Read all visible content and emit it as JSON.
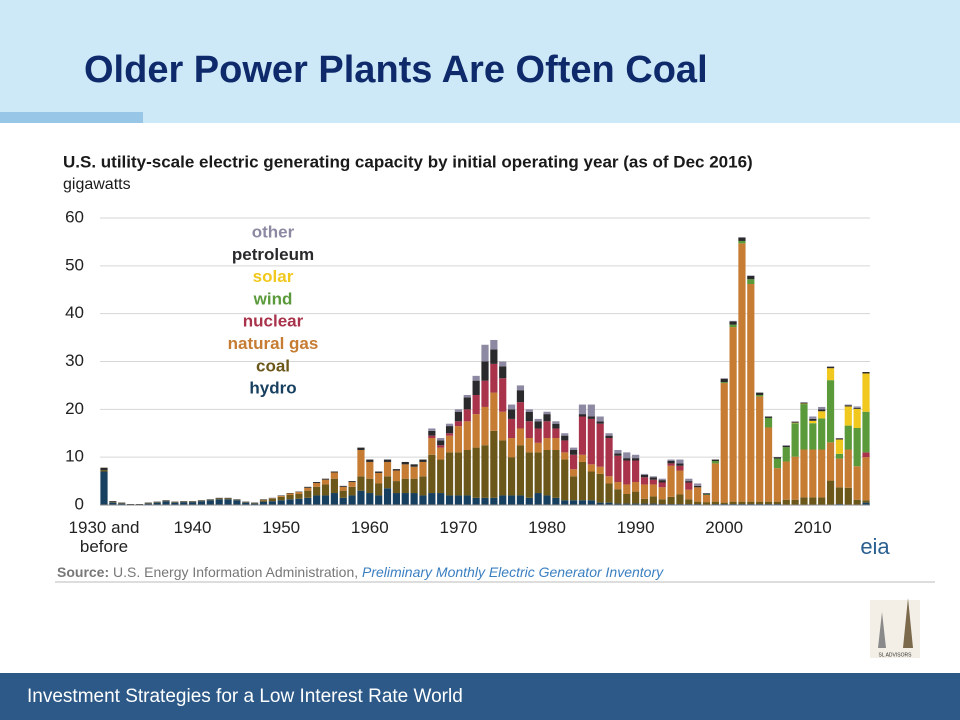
{
  "header": {
    "title": "Older Power Plants Are Often Coal"
  },
  "chart_data": {
    "type": "stacked_bar",
    "title": "U.S. utility-scale electric generating capacity by initial operating year (as of Dec 2016)",
    "y_label": "gigawatts",
    "ylim": [
      0,
      60
    ],
    "yticks": [
      0,
      10,
      20,
      30,
      40,
      50,
      60
    ],
    "grid": true,
    "categories": [
      "1930 and before",
      null,
      null,
      null,
      null,
      null,
      null,
      null,
      null,
      null,
      "1940",
      null,
      null,
      null,
      null,
      null,
      null,
      null,
      null,
      null,
      "1950",
      null,
      null,
      null,
      null,
      null,
      null,
      null,
      null,
      null,
      "1960",
      null,
      null,
      null,
      null,
      null,
      null,
      null,
      null,
      null,
      "1970",
      null,
      null,
      null,
      null,
      null,
      null,
      null,
      null,
      null,
      "1980",
      null,
      null,
      null,
      null,
      null,
      null,
      null,
      null,
      null,
      "1990",
      null,
      null,
      null,
      null,
      null,
      null,
      null,
      null,
      null,
      "2000",
      null,
      null,
      null,
      null,
      null,
      null,
      null,
      null,
      null,
      "2010",
      null,
      null,
      null,
      null,
      null,
      null
    ],
    "series": [
      {
        "name": "hydro",
        "color": "#173f5f",
        "values": [
          7.0,
          0.5,
          0.3,
          0.1,
          0.1,
          0.3,
          0.5,
          0.8,
          0.5,
          0.6,
          0.6,
          0.8,
          1.0,
          1.2,
          1.2,
          1.0,
          0.5,
          0.3,
          0.7,
          0.8,
          1.0,
          1.2,
          1.3,
          1.5,
          2.0,
          2.0,
          2.5,
          1.5,
          2.0,
          3.0,
          2.5,
          2.0,
          3.5,
          2.5,
          2.5,
          2.5,
          2.0,
          2.5,
          2.5,
          2.0,
          2.0,
          2.0,
          1.5,
          1.5,
          1.5,
          2.0,
          2.0,
          2.0,
          1.5,
          2.5,
          2.0,
          1.5,
          1.0,
          1.0,
          1.0,
          1.0,
          0.5,
          0.5,
          0.3,
          0.3,
          0.3,
          0.3,
          0.3,
          0.2,
          0.2,
          0.2,
          0.2,
          0.2,
          0.1,
          0.2,
          0.2,
          0.2,
          0.2,
          0.2,
          0.2,
          0.2,
          0.2,
          0.1,
          0.1,
          0.1,
          0.1,
          0.1,
          0.1,
          0.2,
          0.1,
          0.1,
          0.5
        ]
      },
      {
        "name": "coal",
        "color": "#6b5719",
        "values": [
          0.3,
          0.1,
          0.1,
          0,
          0,
          0.1,
          0.1,
          0.1,
          0.1,
          0.1,
          0.1,
          0.1,
          0.1,
          0.2,
          0.2,
          0.1,
          0.1,
          0.1,
          0.3,
          0.5,
          0.7,
          0.9,
          1.0,
          1.5,
          1.8,
          2.3,
          3.0,
          1.5,
          1.8,
          3.0,
          3.0,
          2.5,
          2.5,
          2.5,
          3.0,
          3.0,
          4.0,
          8.0,
          7.0,
          9.0,
          9.0,
          9.5,
          10.5,
          11.0,
          14.0,
          11.5,
          8.0,
          10.5,
          9.5,
          8.5,
          9.5,
          10.0,
          8.5,
          5.0,
          8.0,
          6.0,
          6.0,
          4.0,
          3.0,
          2.0,
          2.5,
          1.0,
          1.5,
          1.0,
          1.5,
          2.0,
          1.0,
          0.5,
          0.5,
          0.5,
          0.3,
          0.5,
          0.5,
          0.5,
          0.5,
          0.5,
          0.5,
          1.0,
          1.0,
          1.5,
          1.5,
          1.5,
          5.0,
          3.5,
          3.5,
          1.0,
          0.5
        ]
      },
      {
        "name": "natural gas",
        "color": "#c67c33",
        "values": [
          0,
          0,
          0,
          0,
          0,
          0,
          0,
          0,
          0,
          0,
          0,
          0,
          0,
          0,
          0,
          0,
          0,
          0,
          0.1,
          0.1,
          0.2,
          0.3,
          0.4,
          0.6,
          0.8,
          1.0,
          1.3,
          0.8,
          1.0,
          5.5,
          3.5,
          2.2,
          3.0,
          2.2,
          3.0,
          2.5,
          3.0,
          3.5,
          2.5,
          3.5,
          5.5,
          6.0,
          7.0,
          8.0,
          8.0,
          6.0,
          4.0,
          3.5,
          3.0,
          2.0,
          2.5,
          2.5,
          1.5,
          1.5,
          1.5,
          1.5,
          1.5,
          1.5,
          1.5,
          2.0,
          2.0,
          3.0,
          2.5,
          2.5,
          6.5,
          5.0,
          2.0,
          3.0,
          1.5,
          8.0,
          25.0,
          36.5,
          54.0,
          45.5,
          22.0,
          15.5,
          7.0,
          8.0,
          9.0,
          10.0,
          10.0,
          10.0,
          8.0,
          6.0,
          8.0,
          7.0,
          9.0
        ]
      },
      {
        "name": "nuclear",
        "color": "#a8334b",
        "values": [
          0,
          0,
          0,
          0,
          0,
          0,
          0,
          0,
          0,
          0,
          0,
          0,
          0,
          0,
          0,
          0,
          0,
          0,
          0,
          0,
          0,
          0,
          0,
          0,
          0,
          0,
          0,
          0,
          0,
          0,
          0,
          0,
          0,
          0,
          0,
          0,
          0,
          0.5,
          0.5,
          0.5,
          1.0,
          2.5,
          4.0,
          5.5,
          6.0,
          7.0,
          4.0,
          5.5,
          3.5,
          3.0,
          3.5,
          2.0,
          2.5,
          3.0,
          8.0,
          9.5,
          9.0,
          8.0,
          5.5,
          5.0,
          4.5,
          1.5,
          1.0,
          1.0,
          0.5,
          1.0,
          1.5,
          0,
          0,
          0,
          0,
          0,
          0,
          0,
          0,
          0,
          0,
          0,
          0,
          0,
          0,
          0,
          0,
          0,
          0,
          0,
          1.0
        ]
      },
      {
        "name": "wind",
        "color": "#5b9a3b",
        "values": [
          0,
          0,
          0,
          0,
          0,
          0,
          0,
          0,
          0,
          0,
          0,
          0,
          0,
          0,
          0,
          0,
          0,
          0,
          0,
          0,
          0,
          0,
          0,
          0,
          0,
          0,
          0,
          0,
          0,
          0,
          0,
          0,
          0,
          0,
          0,
          0,
          0,
          0,
          0,
          0,
          0,
          0,
          0,
          0,
          0,
          0,
          0,
          0,
          0,
          0,
          0,
          0,
          0,
          0,
          0,
          0,
          0,
          0,
          0,
          0,
          0,
          0,
          0,
          0,
          0,
          0,
          0,
          0,
          0.1,
          0.5,
          0.2,
          0.5,
          0.5,
          1.0,
          0.3,
          2.0,
          2.0,
          3.0,
          7.0,
          9.5,
          5.5,
          6.5,
          13.0,
          1.0,
          5.0,
          8.0,
          8.5
        ]
      },
      {
        "name": "solar",
        "color": "#f1c81d",
        "values": [
          0,
          0,
          0,
          0,
          0,
          0,
          0,
          0,
          0,
          0,
          0,
          0,
          0,
          0,
          0,
          0,
          0,
          0,
          0,
          0,
          0,
          0,
          0,
          0,
          0,
          0,
          0,
          0,
          0,
          0,
          0,
          0,
          0,
          0,
          0,
          0,
          0,
          0,
          0,
          0,
          0,
          0,
          0,
          0,
          0,
          0,
          0,
          0,
          0,
          0,
          0,
          0,
          0,
          0,
          0,
          0,
          0,
          0,
          0,
          0,
          0,
          0,
          0,
          0,
          0,
          0,
          0,
          0,
          0,
          0,
          0,
          0,
          0,
          0,
          0,
          0,
          0,
          0,
          0.1,
          0.1,
          0.5,
          1.5,
          2.5,
          3.0,
          4.0,
          4.0,
          8.0
        ]
      },
      {
        "name": "petroleum",
        "color": "#2a2a2c",
        "values": [
          0.5,
          0.2,
          0.1,
          0.1,
          0.1,
          0.1,
          0.1,
          0.1,
          0.1,
          0.1,
          0.1,
          0.1,
          0.1,
          0.1,
          0.1,
          0.1,
          0.1,
          0.1,
          0.1,
          0.1,
          0.1,
          0.1,
          0.1,
          0.2,
          0.2,
          0.2,
          0.2,
          0.2,
          0.2,
          0.5,
          0.5,
          0.3,
          0.5,
          0.3,
          0.5,
          0.5,
          0.5,
          1.0,
          1.0,
          1.5,
          2.0,
          2.5,
          3.0,
          4.0,
          3.0,
          2.5,
          2.0,
          2.5,
          2.0,
          1.5,
          1.5,
          1.0,
          1.0,
          1.0,
          0.5,
          0.5,
          0.5,
          0.5,
          0.5,
          0.5,
          0.5,
          0.5,
          0.5,
          0.5,
          0.5,
          0.5,
          0.3,
          0.3,
          0.2,
          0.3,
          0.7,
          0.7,
          0.7,
          0.7,
          0.5,
          0.3,
          0.3,
          0.3,
          0.2,
          0.2,
          0.4,
          0.4,
          0.3,
          0.2,
          0.2,
          0.2,
          0.3
        ]
      },
      {
        "name": "other",
        "color": "#8e89a2",
        "values": [
          0,
          0,
          0,
          0,
          0,
          0,
          0,
          0,
          0,
          0,
          0,
          0,
          0,
          0,
          0,
          0,
          0,
          0,
          0,
          0,
          0,
          0,
          0,
          0,
          0,
          0,
          0,
          0,
          0,
          0,
          0,
          0,
          0,
          0,
          0,
          0,
          0,
          0.5,
          0.5,
          0.5,
          0.5,
          0.5,
          1.0,
          3.5,
          2.0,
          1.0,
          1.0,
          1.0,
          0.5,
          0.5,
          0.5,
          0.5,
          0.5,
          0.5,
          2.0,
          2.5,
          1.0,
          0.5,
          0.7,
          1.2,
          0.7,
          0.2,
          0.2,
          0.3,
          0.3,
          0.8,
          0.5,
          0.5,
          0.1,
          0,
          0.1,
          0.1,
          0.1,
          0.1,
          0,
          0,
          0,
          0.1,
          0.1,
          0.1,
          0.5,
          0.5,
          0.1,
          0.1,
          0.2,
          0.3,
          0
        ]
      }
    ],
    "logo": "eia",
    "source_label": "Source:",
    "source_text": "U.S. Energy Information Administration,",
    "source_link": "Preliminary Monthly Electric Generator Inventory"
  },
  "brand": "SL ADVISORS",
  "footer": {
    "text": "Investment Strategies for a Low Interest Rate World"
  }
}
